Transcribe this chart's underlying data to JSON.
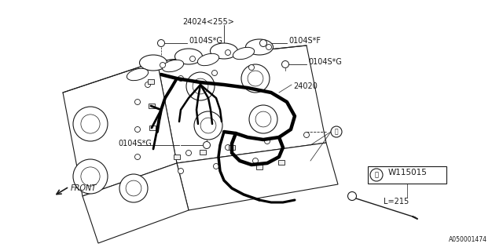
{
  "bg_color": "#ffffff",
  "line_color": "#1a1a1a",
  "labels": {
    "part_24024": "24024<255>",
    "part_0104SG_1": "0104S*G",
    "part_0104SF": "0104S*F",
    "part_0104SG_2": "0104S*G",
    "part_24020": "24020",
    "part_0104SG_3": "0104S*G",
    "front": "FRONT",
    "w115015": "W115015",
    "l215": "L=215",
    "footer": "A050001474"
  },
  "font_size_tiny": 5.5,
  "font_size_small": 6.5,
  "font_size_label": 7.0,
  "font_size_footer": 5.5
}
